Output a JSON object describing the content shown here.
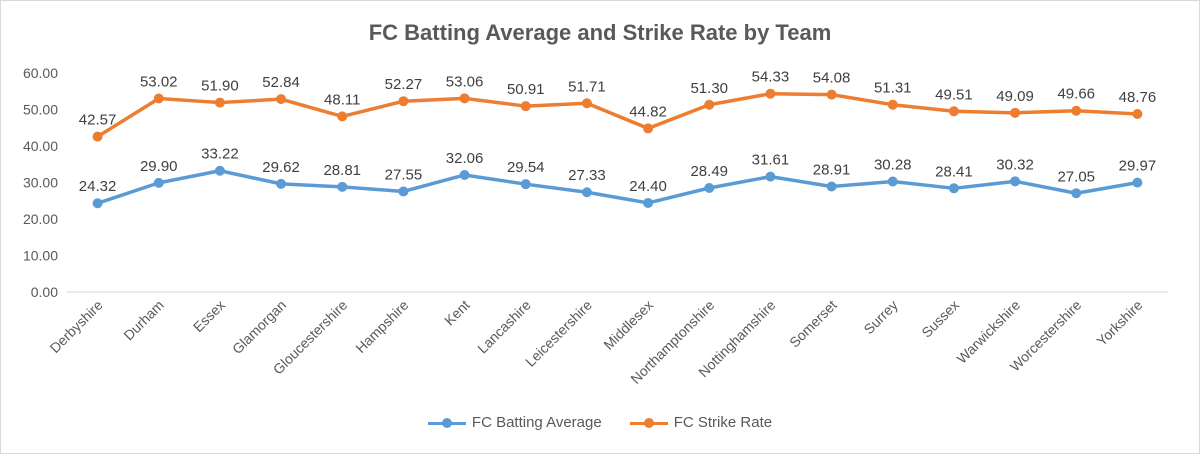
{
  "chart_data": {
    "type": "line",
    "title": "FC Batting Average and Strike Rate by Team",
    "categories": [
      "Derbyshire",
      "Durham",
      "Essex",
      "Glamorgan",
      "Gloucestershire",
      "Hampshire",
      "Kent",
      "Lancashire",
      "Leicestershire",
      "Middlesex",
      "Northamptonshire",
      "Nottinghamshire",
      "Somerset",
      "Surrey",
      "Sussex",
      "Warwickshire",
      "Worcestershire",
      "Yorkshire"
    ],
    "series": [
      {
        "name": "FC Batting Average",
        "color": "#5b9bd5",
        "values": [
          24.32,
          29.9,
          33.22,
          29.62,
          28.81,
          27.55,
          32.06,
          29.54,
          27.33,
          24.4,
          28.49,
          31.61,
          28.91,
          30.28,
          28.41,
          30.32,
          27.05,
          29.97
        ],
        "labels": [
          "24.32",
          "29.90",
          "33.22",
          "29.62",
          "28.81",
          "27.55",
          "32.06",
          "29.54",
          "27.33",
          "24.40",
          "28.49",
          "31.61",
          "28.91",
          "30.28",
          "28.41",
          "30.32",
          "27.05",
          "29.97"
        ]
      },
      {
        "name": "FC Strike Rate",
        "color": "#ed7d31",
        "values": [
          42.57,
          53.02,
          51.9,
          52.84,
          48.11,
          52.27,
          53.06,
          50.91,
          51.71,
          44.82,
          51.3,
          54.33,
          54.08,
          51.31,
          49.51,
          49.09,
          49.66,
          48.76
        ],
        "labels": [
          "42.57",
          "53.02",
          "51.90",
          "52.84",
          "48.11",
          "52.27",
          "53.06",
          "50.91",
          "51.71",
          "44.82",
          "51.30",
          "54.33",
          "54.08",
          "51.31",
          "49.51",
          "49.09",
          "49.66",
          "48.76"
        ]
      }
    ],
    "ylim": [
      0,
      60
    ],
    "yticks": [
      "0.00",
      "10.00",
      "20.00",
      "30.00",
      "40.00",
      "50.00",
      "60.00"
    ],
    "xlabel": "",
    "ylabel": "",
    "grid": false,
    "legend_position": "bottom"
  }
}
